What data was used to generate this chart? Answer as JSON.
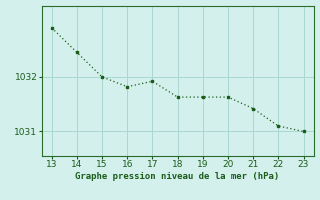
{
  "x": [
    13,
    14,
    15,
    16,
    17,
    18,
    19,
    20,
    21,
    22,
    23
  ],
  "y": [
    1032.9,
    1032.45,
    1032.0,
    1031.82,
    1031.92,
    1031.63,
    1031.63,
    1031.63,
    1031.42,
    1031.1,
    1031.0
  ],
  "line_color": "#1a5c1a",
  "marker_color": "#1a5c1a",
  "bg_color": "#d4f0ec",
  "grid_color": "#a8d8d0",
  "xlabel": "Graphe pression niveau de la mer (hPa)",
  "xlabel_color": "#1a5c1a",
  "tick_color": "#1a5c1a",
  "spine_color": "#2a6c2a",
  "ylim": [
    1030.55,
    1033.3
  ],
  "xlim": [
    12.6,
    23.4
  ],
  "yticks": [
    1031,
    1032
  ],
  "xticks": [
    13,
    14,
    15,
    16,
    17,
    18,
    19,
    20,
    21,
    22,
    23
  ]
}
